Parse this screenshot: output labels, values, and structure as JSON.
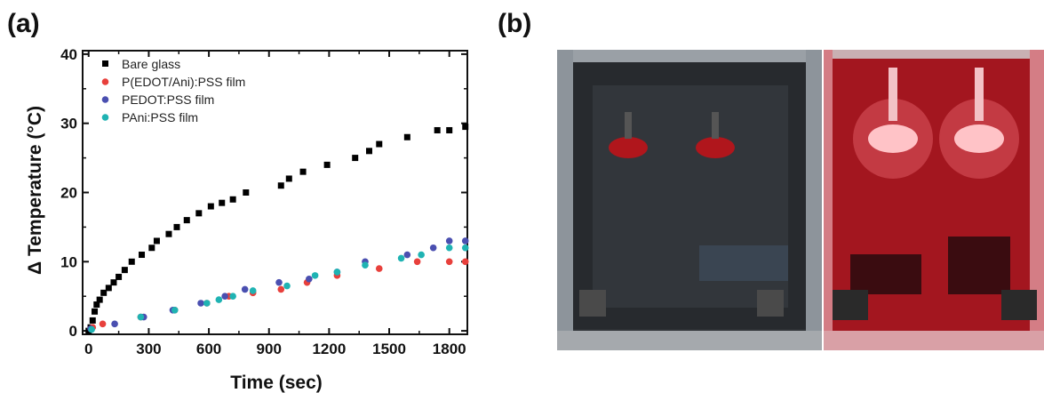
{
  "panels": {
    "a_label": "(a)",
    "b_label": "(b)"
  },
  "chart_data": {
    "type": "scatter",
    "xlabel": "Time (sec)",
    "ylabel": "Δ Temperature (°C)",
    "xlim": [
      -30,
      1890
    ],
    "ylim": [
      -0.5,
      40.5
    ],
    "xticks": [
      0,
      300,
      600,
      900,
      1200,
      1500,
      1800
    ],
    "yticks": [
      0,
      10,
      20,
      30,
      40
    ],
    "grid": false,
    "legend_position": "top-left",
    "series": [
      {
        "name": "Bare glass",
        "marker": "square",
        "color": "#000000",
        "points": [
          [
            0,
            0
          ],
          [
            10,
            0.5
          ],
          [
            20,
            1.5
          ],
          [
            30,
            2.8
          ],
          [
            40,
            3.8
          ],
          [
            55,
            4.5
          ],
          [
            75,
            5.5
          ],
          [
            100,
            6.2
          ],
          [
            125,
            7.0
          ],
          [
            150,
            7.8
          ],
          [
            180,
            8.8
          ],
          [
            215,
            10.0
          ],
          [
            265,
            11.0
          ],
          [
            315,
            12.0
          ],
          [
            340,
            13.0
          ],
          [
            400,
            14.0
          ],
          [
            440,
            15.0
          ],
          [
            490,
            16.0
          ],
          [
            550,
            17.0
          ],
          [
            610,
            18.0
          ],
          [
            665,
            18.5
          ],
          [
            720,
            19.0
          ],
          [
            785,
            20.0
          ],
          [
            960,
            21.0
          ],
          [
            1000,
            22.0
          ],
          [
            1070,
            23.0
          ],
          [
            1190,
            24.0
          ],
          [
            1330,
            25.0
          ],
          [
            1400,
            26.0
          ],
          [
            1450,
            27.0
          ],
          [
            1590,
            28.0
          ],
          [
            1740,
            29.0
          ],
          [
            1800,
            29.0
          ],
          [
            1880,
            29.5
          ]
        ]
      },
      {
        "name": "P(EDOT/Ani):PSS film",
        "marker": "circle",
        "color": "#e8403c",
        "points": [
          [
            20,
            0.5
          ],
          [
            70,
            1.0
          ],
          [
            260,
            2.0
          ],
          [
            430,
            3.0
          ],
          [
            590,
            4.0
          ],
          [
            700,
            5.0
          ],
          [
            820,
            5.5
          ],
          [
            960,
            6.0
          ],
          [
            1090,
            7.0
          ],
          [
            1240,
            8.0
          ],
          [
            1450,
            9.0
          ],
          [
            1640,
            10.0
          ],
          [
            1800,
            10.0
          ],
          [
            1880,
            10.0
          ]
        ]
      },
      {
        "name": "PEDOT:PSS film",
        "marker": "circle",
        "color": "#4a4fb0",
        "points": [
          [
            10,
            0.3
          ],
          [
            130,
            1.0
          ],
          [
            275,
            2.0
          ],
          [
            420,
            3.0
          ],
          [
            560,
            4.0
          ],
          [
            680,
            5.0
          ],
          [
            780,
            6.0
          ],
          [
            950,
            7.0
          ],
          [
            1100,
            7.5
          ],
          [
            1240,
            8.5
          ],
          [
            1380,
            10.0
          ],
          [
            1590,
            11.0
          ],
          [
            1720,
            12.0
          ],
          [
            1800,
            13.0
          ],
          [
            1880,
            13.0
          ]
        ]
      },
      {
        "name": "PAni:PSS film",
        "marker": "circle",
        "color": "#1fb3b3",
        "points": [
          [
            15,
            0.2
          ],
          [
            260,
            2.0
          ],
          [
            430,
            3.0
          ],
          [
            590,
            4.0
          ],
          [
            650,
            4.5
          ],
          [
            720,
            5.0
          ],
          [
            820,
            5.8
          ],
          [
            990,
            6.5
          ],
          [
            1130,
            8.0
          ],
          [
            1240,
            8.5
          ],
          [
            1380,
            9.5
          ],
          [
            1560,
            10.5
          ],
          [
            1660,
            11.0
          ],
          [
            1800,
            12.0
          ],
          [
            1880,
            12.0
          ]
        ]
      }
    ]
  }
}
